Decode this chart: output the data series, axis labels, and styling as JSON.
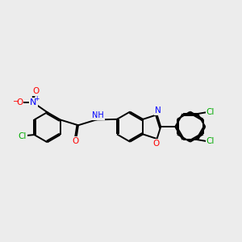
{
  "background_color": "#ececec",
  "bond_color": "#000000",
  "bond_width": 1.4,
  "dbo": 0.055,
  "atom_colors": {
    "N": "#0000ff",
    "O": "#ff0000",
    "Cl": "#00aa00"
  },
  "font_size": 7.5,
  "figsize": [
    3.0,
    3.0
  ],
  "dpi": 100
}
